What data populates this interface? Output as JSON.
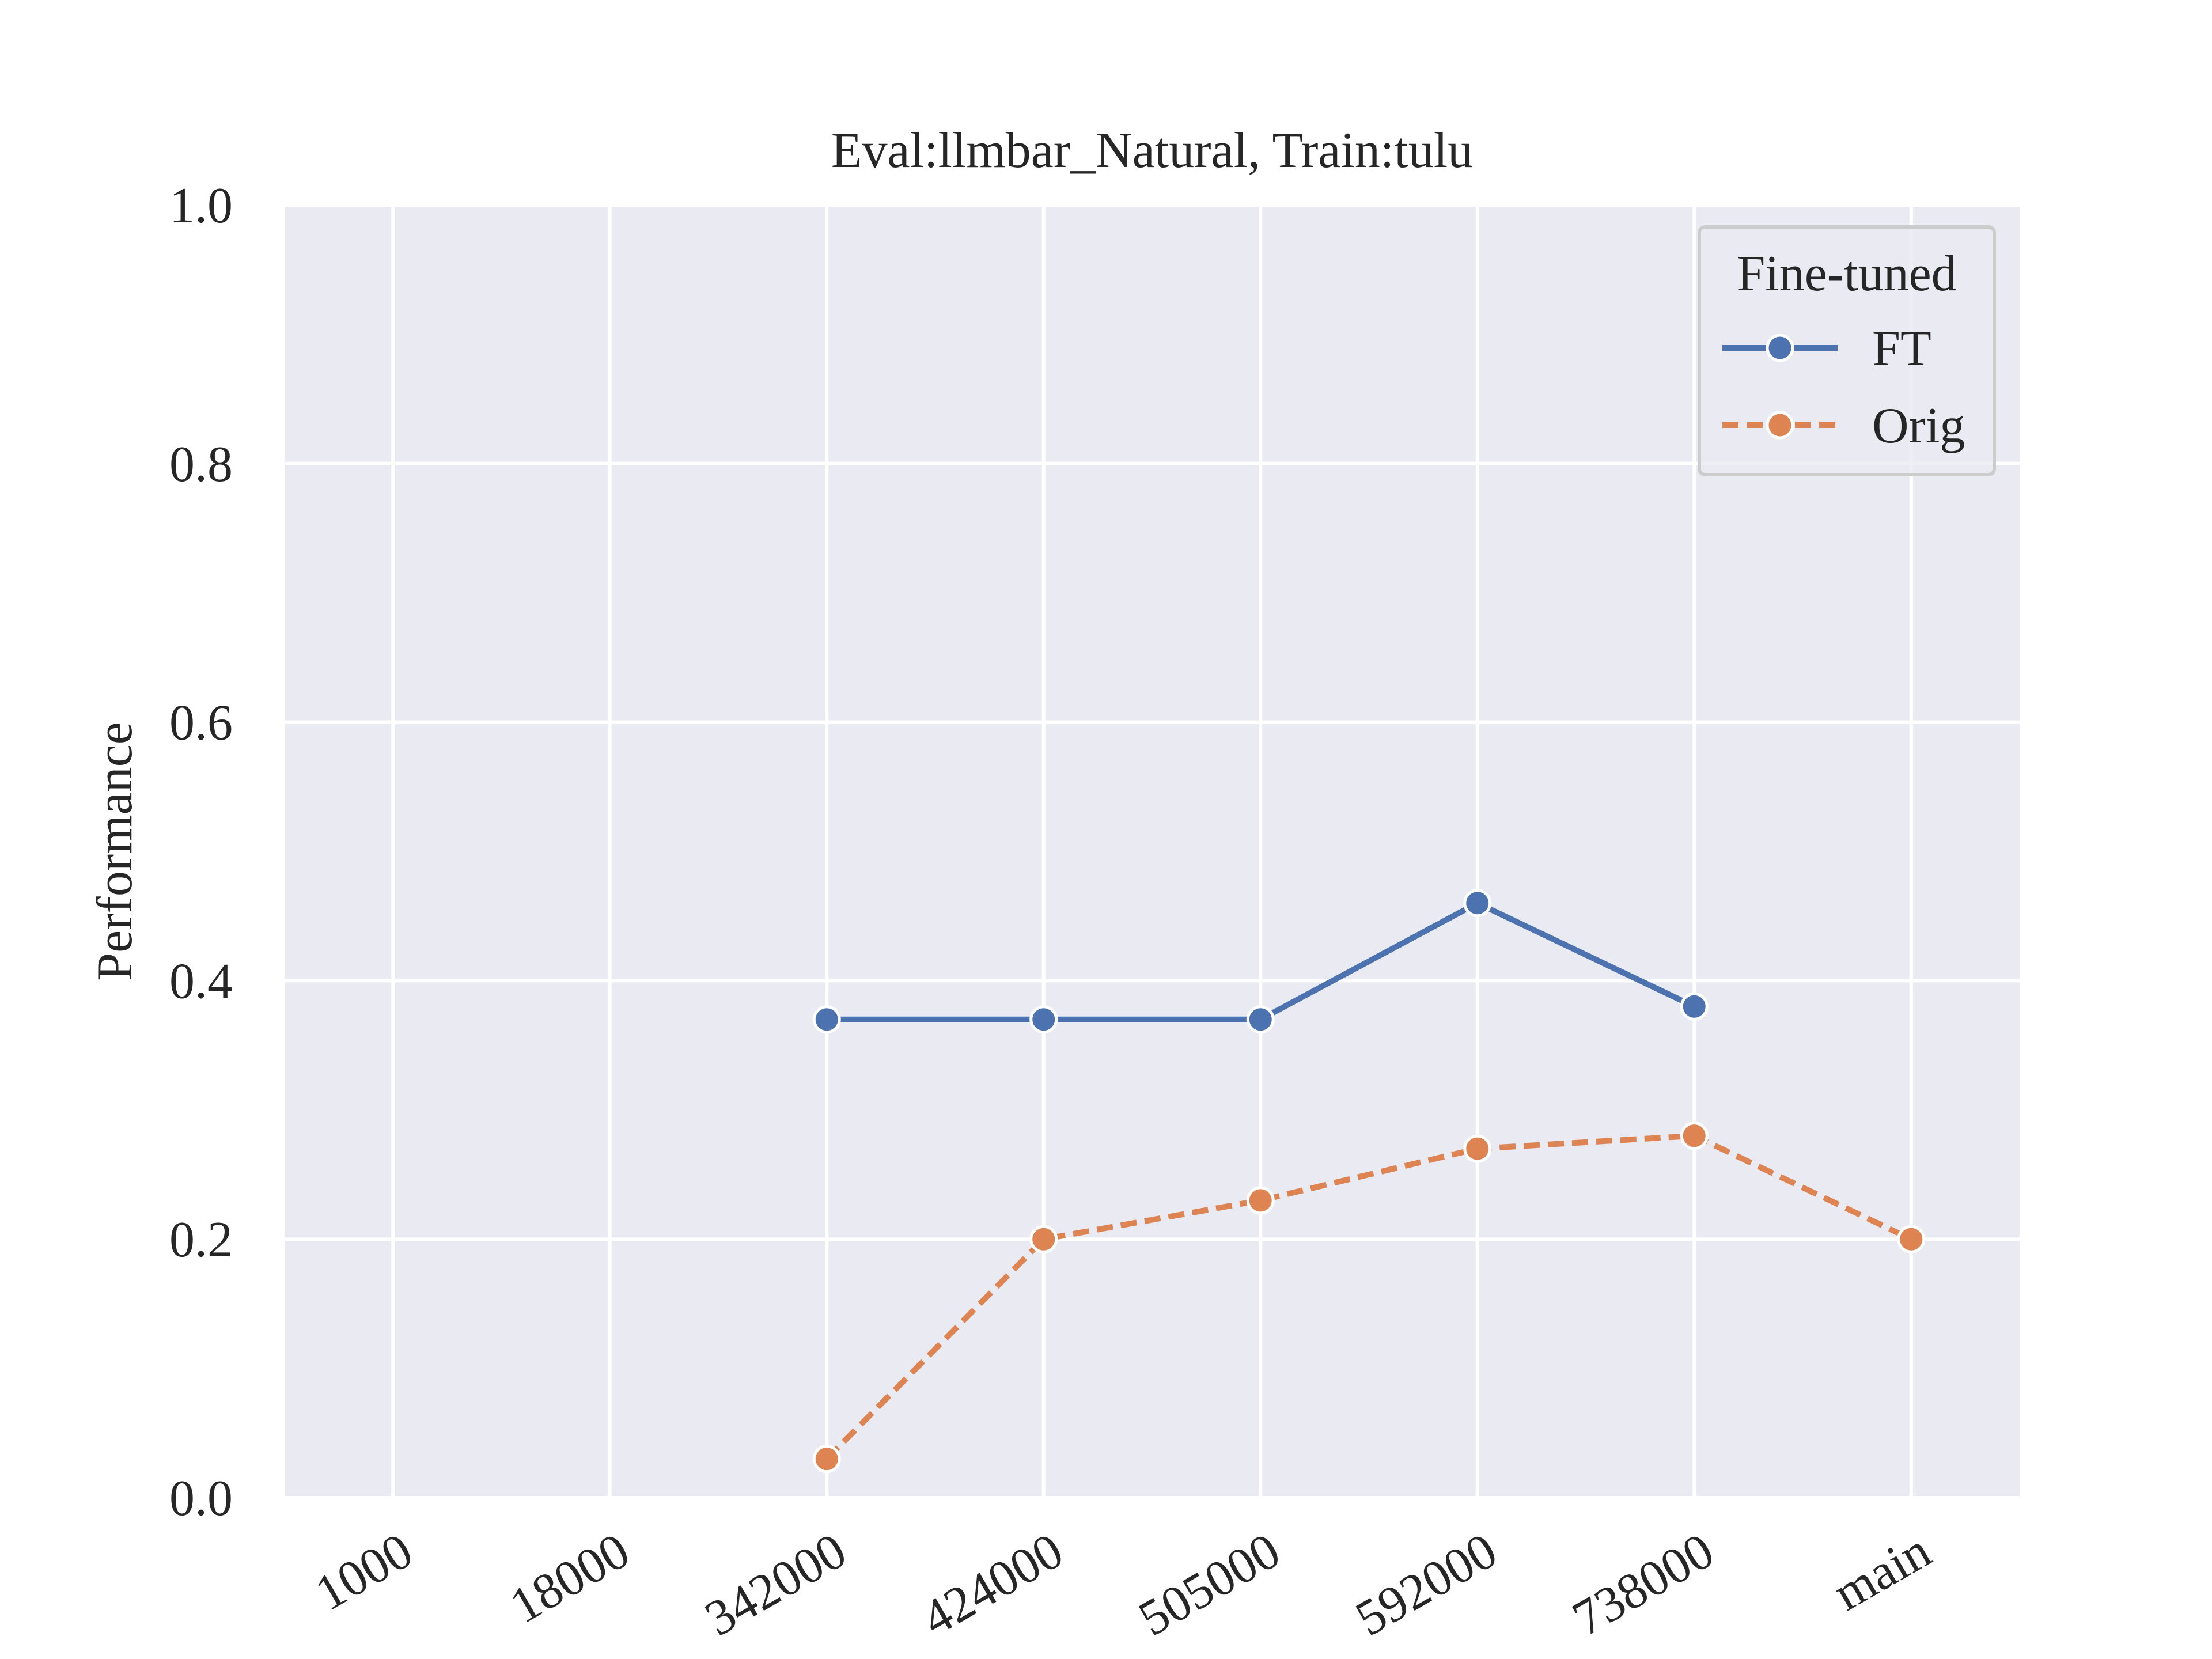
{
  "chart_data": {
    "type": "line",
    "title": "Eval:llmbar_Natural, Train:tulu",
    "xlabel": "",
    "ylabel": "Performance",
    "categories": [
      "1000",
      "18000",
      "342000",
      "424000",
      "505000",
      "592000",
      "738000",
      "main"
    ],
    "yticks": [
      "0.0",
      "0.2",
      "0.4",
      "0.6",
      "0.8",
      "1.0"
    ],
    "ylim": [
      0,
      1
    ],
    "grid": true,
    "legend": {
      "title": "Fine-tuned",
      "placement": "top-right"
    },
    "series": [
      {
        "name": "FT",
        "color": "#4c72b0",
        "dash": "solid",
        "marker": "circle",
        "values": [
          null,
          null,
          0.37,
          0.37,
          0.37,
          0.46,
          0.38,
          null
        ]
      },
      {
        "name": "Orig",
        "color": "#dd8452",
        "dash": "dashed",
        "marker": "circle",
        "values": [
          null,
          null,
          0.03,
          0.2,
          0.23,
          0.27,
          0.28,
          0.2
        ]
      }
    ],
    "colors": {
      "plot_background": "#eaeaf2",
      "grid": "#ffffff",
      "text": "#262626"
    }
  }
}
